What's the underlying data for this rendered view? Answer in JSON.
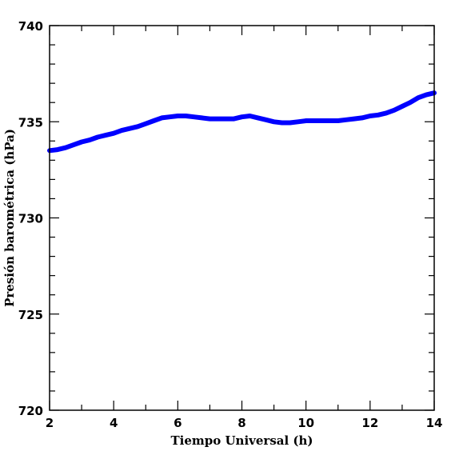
{
  "chart_data": {
    "type": "line",
    "title": "",
    "xlabel": "Tiempo Universal (h)",
    "ylabel": "Presión barométrica (hPa)",
    "xlim": [
      2,
      14
    ],
    "ylim": [
      720,
      740
    ],
    "x_ticks": [
      2,
      4,
      6,
      8,
      10,
      12,
      14
    ],
    "y_ticks": [
      720,
      725,
      730,
      735,
      740
    ],
    "grid": false,
    "legend": "none",
    "series": [
      {
        "color": "#0000ff",
        "x": [
          2.0,
          2.25,
          2.5,
          2.75,
          3.0,
          3.25,
          3.5,
          3.75,
          4.0,
          4.25,
          4.5,
          4.75,
          5.0,
          5.25,
          5.5,
          5.75,
          6.0,
          6.25,
          6.5,
          6.75,
          7.0,
          7.25,
          7.5,
          7.75,
          8.0,
          8.25,
          8.5,
          8.75,
          9.0,
          9.25,
          9.5,
          9.75,
          10.0,
          10.25,
          10.5,
          10.75,
          11.0,
          11.25,
          11.5,
          11.75,
          12.0,
          12.25,
          12.5,
          12.75,
          13.0,
          13.25,
          13.5,
          13.75,
          14.0
        ],
        "values": [
          733.5,
          733.55,
          733.65,
          733.8,
          733.95,
          734.05,
          734.2,
          734.3,
          734.4,
          734.55,
          734.65,
          734.75,
          734.9,
          735.05,
          735.2,
          735.25,
          735.3,
          735.3,
          735.25,
          735.2,
          735.15,
          735.15,
          735.15,
          735.15,
          735.25,
          735.3,
          735.2,
          735.1,
          735.0,
          734.95,
          734.95,
          735.0,
          735.05,
          735.05,
          735.05,
          735.05,
          735.05,
          735.1,
          735.15,
          735.2,
          735.3,
          735.35,
          735.45,
          735.6,
          735.8,
          736.0,
          736.25,
          736.4,
          736.5
        ]
      }
    ]
  }
}
